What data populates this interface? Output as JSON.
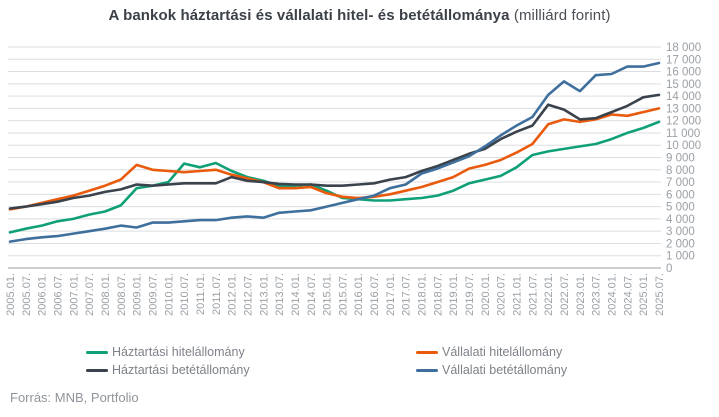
{
  "title": {
    "main": "A bankok háztartási és vállalati hitel- és betétállománya",
    "suffix": " (milliárd forint)"
  },
  "source": "Forrás: MNB, Portfolio",
  "colors": {
    "household_loans": "#10a078",
    "corporate_loans": "#e95a0c",
    "household_deposits": "#3a424c",
    "corporate_deposits": "#3f6f9d",
    "gridline": "#dcdee1",
    "axis_line": "#9aa0a6",
    "tick_text": "#9aa0a6",
    "legend_text": "#7d8288",
    "title_text": "#3c4148",
    "source_text": "#8f959b"
  },
  "chart_data": {
    "type": "line",
    "title": "A bankok háztartási és vállalati hitel- és betétállománya (milliárd forint)",
    "unit": "milliárd forint",
    "grid": true,
    "legend_position": "bottom",
    "ylim": [
      0,
      18000
    ],
    "y_tick_step": 1000,
    "y_tick_labels": [
      "0",
      "1 000",
      "2 000",
      "3 000",
      "4 000",
      "5 000",
      "6 000",
      "7 000",
      "8 000",
      "9 000",
      "10 000",
      "11 000",
      "12 000",
      "13 000",
      "14 000",
      "15 000",
      "16 000",
      "17 000",
      "18 000"
    ],
    "x_labels": [
      "2005.01.",
      "2005.07.",
      "2006.01.",
      "2006.07.",
      "2007.01.",
      "2007.07.",
      "2008.01.",
      "2008.07.",
      "2009.01.",
      "2009.07.",
      "2010.01.",
      "2010.07.",
      "2011.01.",
      "2011.07.",
      "2012.01.",
      "2012.07.",
      "2013.01.",
      "2013.07.",
      "2014.01.",
      "2014.07.",
      "2015.01.",
      "2015.07.",
      "2016.01.",
      "2016.07.",
      "2017.01.",
      "2017.07.",
      "2018.01.",
      "2018.07.",
      "2019.01.",
      "2019.07.",
      "2020.01.",
      "2020.07.",
      "2021.01.",
      "2021.07.",
      "2022.01.",
      "2022.07.",
      "2023.01.",
      "2023.07.",
      "2024.01.",
      "2024.07.",
      "2025.01.",
      "2025.07."
    ],
    "series": [
      {
        "name": "Háztartási hitelállomány",
        "color": "#10a078",
        "values": [
          2900,
          3200,
          3450,
          3800,
          4000,
          4350,
          4600,
          5100,
          6500,
          6700,
          7000,
          8500,
          8200,
          8550,
          7900,
          7400,
          7100,
          6700,
          6700,
          6800,
          6300,
          5700,
          5600,
          5500,
          5500,
          5600,
          5700,
          5900,
          6300,
          6900,
          7200,
          7500,
          8200,
          9200,
          9500,
          9700,
          9900,
          10100,
          10500,
          11000,
          11400,
          11900
        ]
      },
      {
        "name": "Vállalati hitelállomány",
        "color": "#e95a0c",
        "values": [
          4770,
          5000,
          5300,
          5600,
          5900,
          6300,
          6700,
          7200,
          8400,
          8000,
          7900,
          7800,
          7900,
          8000,
          7600,
          7300,
          7000,
          6500,
          6500,
          6600,
          6100,
          5800,
          5700,
          5800,
          6000,
          6300,
          6600,
          7000,
          7400,
          8100,
          8400,
          8800,
          9400,
          10100,
          11700,
          12100,
          11900,
          12100,
          12500,
          12400,
          12700,
          13000
        ]
      },
      {
        "name": "Háztartási betétállomány",
        "color": "#3a424c",
        "values": [
          4850,
          5000,
          5200,
          5400,
          5700,
          5900,
          6200,
          6400,
          6800,
          6700,
          6800,
          6900,
          6900,
          6900,
          7400,
          7100,
          7000,
          6850,
          6800,
          6800,
          6700,
          6700,
          6800,
          6900,
          7200,
          7400,
          7900,
          8300,
          8800,
          9300,
          9700,
          10500,
          11100,
          11600,
          13300,
          12900,
          12100,
          12200,
          12700,
          13200,
          13900,
          14100
        ]
      },
      {
        "name": "Vállalati betétállomány",
        "color": "#3f6f9d",
        "values": [
          2150,
          2350,
          2500,
          2600,
          2800,
          3000,
          3200,
          3450,
          3300,
          3700,
          3700,
          3800,
          3900,
          3900,
          4100,
          4200,
          4100,
          4500,
          4600,
          4700,
          5000,
          5300,
          5600,
          5900,
          6500,
          6800,
          7700,
          8100,
          8600,
          9100,
          9900,
          10800,
          11600,
          12300,
          14100,
          15200,
          14400,
          15700,
          15800,
          16400,
          16400,
          16700
        ]
      }
    ]
  },
  "legend": {
    "items": [
      {
        "label": "Háztartási hitelállomány"
      },
      {
        "label": "Vállalati hitelállomány"
      },
      {
        "label": "Háztartási betétállomány"
      },
      {
        "label": "Vállalati betétállomány"
      }
    ]
  }
}
